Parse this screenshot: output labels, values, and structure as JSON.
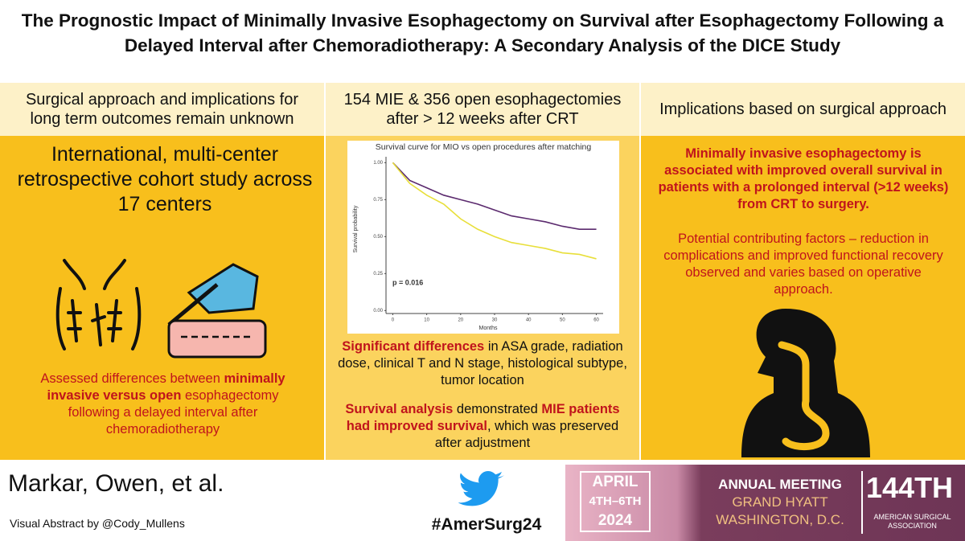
{
  "header": {
    "title": "The Prognostic Impact of Minimally Invasive Esophagectomy on Survival after Esophagectomy Following a Delayed Interval after Chemoradiotherapy: A Secondary Analysis of the DICE Study"
  },
  "left": {
    "heading": "Surgical approach and implications for long term outcomes remain unknown",
    "design": "International, multi-center retrospective cohort study across 17 centers",
    "note": [
      "Assessed differences between ",
      "minimally invasive versus open",
      " esophagectomy following a delayed interval after chemoradiotherapy"
    ]
  },
  "middle": {
    "heading": "154 MIE & 356 open esophagectomies after > 12 weeks after CRT",
    "differences": [
      "Significant differences",
      " in ASA grade, radiation dose, clinical T and N stage, histological subtype, tumor location"
    ],
    "survival": [
      "Survival analysis",
      " demonstrated ",
      "MIE patients had improved survival",
      ", which was preserved after adjustment"
    ]
  },
  "right": {
    "heading": "Implications based on surgical approach",
    "conclusion": "Minimally invasive esophagectomy is associated with improved overall survival in patients with a prolonged interval (>12 weeks) from CRT to surgery.",
    "factors": "Potential contributing factors – reduction in complications and improved functional recovery observed and varies based on operative approach."
  },
  "footer": {
    "authors": "Markar, Owen, et al.",
    "credit": "Visual Abstract by @Cody_Mullens",
    "hashtag": "#AmerSurg24",
    "banner": {
      "dates": [
        "APRIL",
        "4TH–6TH",
        "2024"
      ],
      "meeting": [
        "ANNUAL MEETING",
        "GRAND HYATT",
        "WASHINGTON, D.C."
      ],
      "edition": "144TH",
      "org": [
        "AMERICAN SURGICAL",
        "ASSOCIATION"
      ]
    }
  },
  "chart_data": {
    "type": "line",
    "title": "Survival curve for MIO vs open procedures after matching",
    "y_label": "Survival probability",
    "x_label": "Months",
    "annotation": "p = 0.016",
    "x": [
      0,
      5,
      10,
      15,
      20,
      25,
      30,
      35,
      40,
      45,
      50,
      55,
      60
    ],
    "series": [
      {
        "color": "#5b2a6e",
        "values": [
          1.0,
          0.88,
          0.83,
          0.78,
          0.75,
          0.72,
          0.68,
          0.64,
          0.62,
          0.6,
          0.57,
          0.55,
          0.55
        ]
      },
      {
        "color": "#e8df3a",
        "values": [
          1.0,
          0.86,
          0.78,
          0.72,
          0.62,
          0.55,
          0.5,
          0.46,
          0.44,
          0.42,
          0.39,
          0.38,
          0.35
        ]
      }
    ],
    "xlim": [
      -2,
      62
    ],
    "ylim": [
      -0.02,
      1.04
    ],
    "xticks": [
      0,
      10,
      20,
      30,
      40,
      50,
      60
    ],
    "yticks": [
      {
        "value": 0,
        "label": "0.00"
      },
      {
        "value": 0.25,
        "label": "0.25"
      },
      {
        "value": 0.5,
        "label": "0.50"
      },
      {
        "value": 0.75,
        "label": "0.75"
      },
      {
        "value": 1,
        "label": "1.00"
      }
    ]
  }
}
